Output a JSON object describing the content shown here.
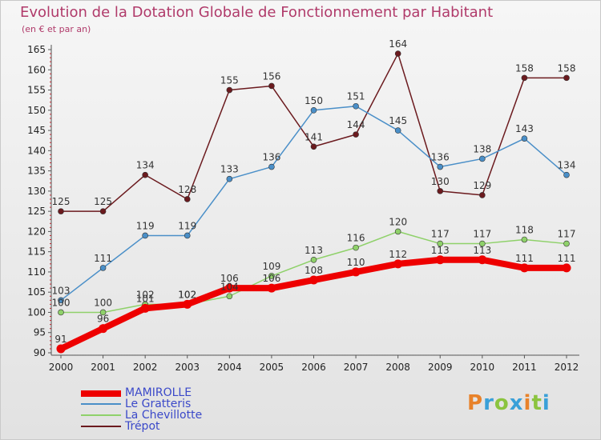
{
  "title": "Evolution de la Dotation Globale de Fonctionnement par Habitant",
  "subtitle": "(en € et par an)",
  "brand": {
    "text": "Proxiti",
    "letters": [
      {
        "ch": "P",
        "color": "#e8822a"
      },
      {
        "ch": "r",
        "color": "#3aa0d8"
      },
      {
        "ch": "o",
        "color": "#8bc43f"
      },
      {
        "ch": "x",
        "color": "#3aa0d8"
      },
      {
        "ch": "i",
        "color": "#e8822a"
      },
      {
        "ch": "t",
        "color": "#8bc43f"
      },
      {
        "ch": "i",
        "color": "#3aa0d8"
      }
    ]
  },
  "chart_data": {
    "type": "line",
    "x": [
      "2000",
      "2001",
      "2002",
      "2003",
      "2004",
      "2005",
      "2006",
      "2007",
      "2008",
      "2009",
      "2010",
      "2011",
      "2012"
    ],
    "ylim": [
      90,
      165
    ],
    "yticks": [
      90,
      95,
      100,
      105,
      110,
      115,
      120,
      125,
      130,
      135,
      140,
      145,
      150,
      155,
      160,
      165
    ],
    "grid": false,
    "legend": "bottom-left",
    "series": [
      {
        "name": "Trépot",
        "color": "#6b1a1e",
        "values": [
          125,
          125,
          134,
          128,
          155,
          156,
          141,
          144,
          164,
          130,
          129,
          158,
          158
        ]
      },
      {
        "name": "Le Gratteris",
        "color": "#4a8fc8",
        "values": [
          103,
          111,
          119,
          119,
          133,
          136,
          150,
          151,
          145,
          136,
          138,
          143,
          134
        ]
      },
      {
        "name": "La Chevillotte",
        "color": "#8fd16a",
        "values": [
          100,
          100,
          102,
          102,
          104,
          109,
          113,
          116,
          120,
          117,
          117,
          118,
          117
        ]
      },
      {
        "name": "MAMIROLLE",
        "color": "#ee0000",
        "values": [
          91,
          96,
          101,
          102,
          106,
          106,
          108,
          110,
          112,
          113,
          113,
          111,
          111
        ]
      }
    ],
    "value_labels": {
      "Trépot": [
        "125",
        "125",
        "134",
        "128",
        "155",
        "156",
        "141",
        "144",
        "164",
        "130",
        "129",
        "158",
        "158"
      ],
      "Le Gratteris": [
        "103",
        "111",
        "119",
        "119",
        "133",
        "136",
        "150",
        "151",
        "145",
        "136",
        "138",
        "143",
        "134"
      ],
      "La Chevillotte": [
        "100",
        "100",
        "102",
        "102",
        "104",
        "109",
        "113",
        "116",
        "120",
        "117",
        "117",
        "118",
        "117"
      ],
      "MAMIROLLE": [
        "91",
        "96",
        "101",
        "102",
        "106",
        "106",
        "108",
        "110",
        "112",
        "113",
        "113",
        "111",
        "111"
      ]
    },
    "legend_order": [
      "MAMIROLLE",
      "Le Gratteris",
      "La Chevillotte",
      "Trépot"
    ]
  }
}
